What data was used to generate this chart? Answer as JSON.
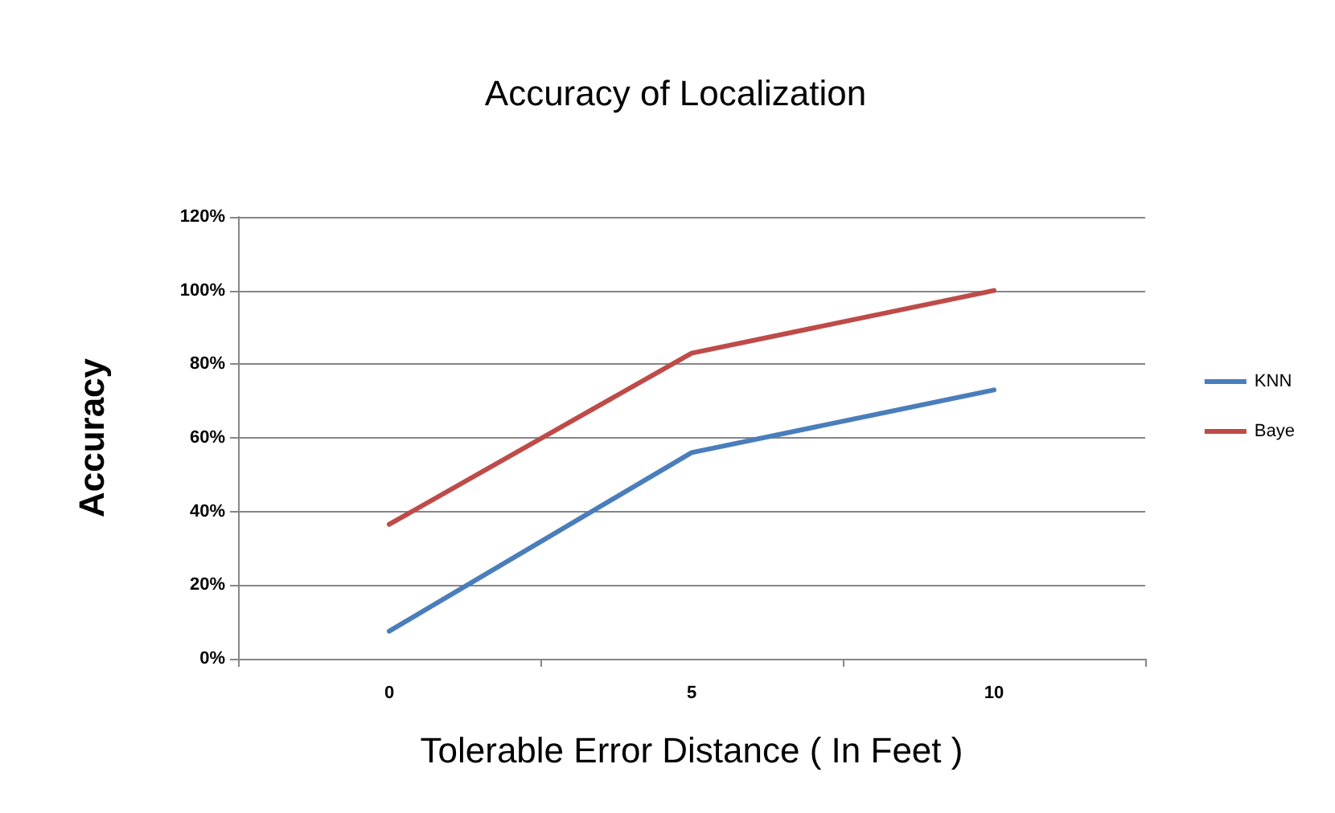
{
  "chart_data": {
    "type": "line",
    "title": "Accuracy of Localization",
    "xlabel": "Tolerable Error Distance ( In Feet )",
    "ylabel": "Accuracy",
    "categories": [
      "0",
      "5",
      "10"
    ],
    "series": [
      {
        "name": "KNN",
        "color": "#4a7ebb",
        "values": [
          7.5,
          56,
          73
        ]
      },
      {
        "name": "Baye",
        "color": "#be4b48",
        "values": [
          36.5,
          83,
          100
        ]
      }
    ],
    "ylim": [
      0,
      120
    ],
    "yticks": [
      {
        "value": 0,
        "label": "0%"
      },
      {
        "value": 20,
        "label": "20%"
      },
      {
        "value": 40,
        "label": "40%"
      },
      {
        "value": 60,
        "label": "60%"
      },
      {
        "value": 80,
        "label": "80%"
      },
      {
        "value": 100,
        "label": "100%"
      },
      {
        "value": 120,
        "label": "120%"
      }
    ],
    "grid": "y",
    "legend": "right",
    "marker": "none",
    "line_style": "solid"
  }
}
